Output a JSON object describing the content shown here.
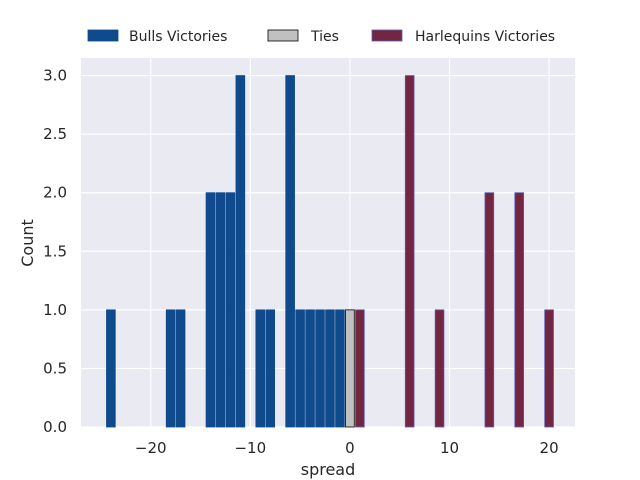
{
  "chart_data": {
    "type": "bar",
    "xlabel": "spread",
    "ylabel": "Count",
    "xlim": [
      -27,
      22.6
    ],
    "ylim": [
      0,
      3.15
    ],
    "x_ticks": [
      -20,
      -10,
      0,
      10,
      20
    ],
    "x_tick_labels": [
      "−20",
      "−10",
      "0",
      "10",
      "20"
    ],
    "y_ticks": [
      0.0,
      0.5,
      1.0,
      1.5,
      2.0,
      2.5,
      3.0
    ],
    "y_tick_labels": [
      "0.0",
      "0.5",
      "1.0",
      "1.5",
      "2.0",
      "2.5",
      "3.0"
    ],
    "grid": true,
    "legend_position": "top",
    "bar_width": 0.88,
    "series": [
      {
        "name": "Bulls Victories",
        "color": "#0f4a8d",
        "edgecolor": "#0f4a8d",
        "x": [
          -24,
          -18,
          -17,
          -14,
          -13,
          -12,
          -11,
          -9,
          -8,
          -6,
          -5,
          -4,
          -3,
          -2,
          -1
        ],
        "values": [
          1,
          1,
          1,
          2,
          2,
          2,
          3,
          1,
          1,
          3,
          1,
          1,
          1,
          1,
          1
        ]
      },
      {
        "name": "Ties",
        "color": "#c0c0c0",
        "edgecolor": "#000000",
        "x": [
          0
        ],
        "values": [
          1
        ]
      },
      {
        "name": "Harlequins Victories",
        "color": "#722642",
        "edgecolor": "#5a5ab0",
        "x": [
          1,
          6,
          9,
          14,
          17,
          20
        ],
        "values": [
          1,
          3,
          1,
          2,
          2,
          1
        ]
      }
    ]
  }
}
